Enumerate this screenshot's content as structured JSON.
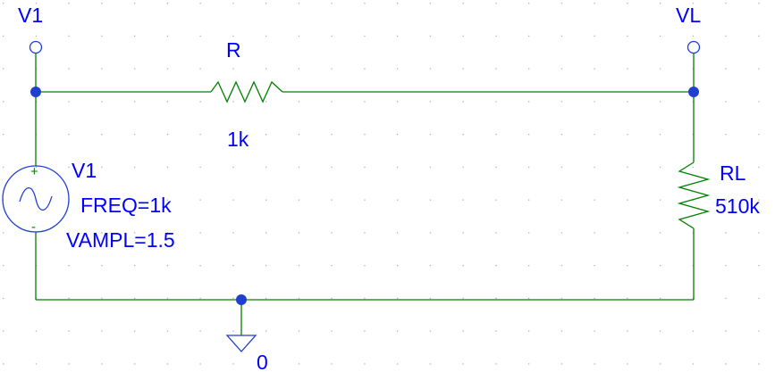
{
  "schematic": {
    "colors": {
      "wire": "#008000",
      "symbol": "#1f3fd0",
      "text": "#0000ff",
      "grid": "#b0b0b0",
      "background": "#ffffff"
    },
    "nets": [
      {
        "name": "V1",
        "marker": "net-marker-circle"
      },
      {
        "name": "VL",
        "marker": "net-marker-circle"
      }
    ],
    "components": {
      "R": {
        "ref": "R",
        "value": "1k"
      },
      "RL": {
        "ref": "RL",
        "value": "510k"
      },
      "V1": {
        "ref": "V1",
        "freq": "FREQ=1k",
        "vampl": "VAMPL=1.5",
        "plus": "+",
        "minus": "-"
      }
    },
    "ground": {
      "label": "0"
    }
  }
}
